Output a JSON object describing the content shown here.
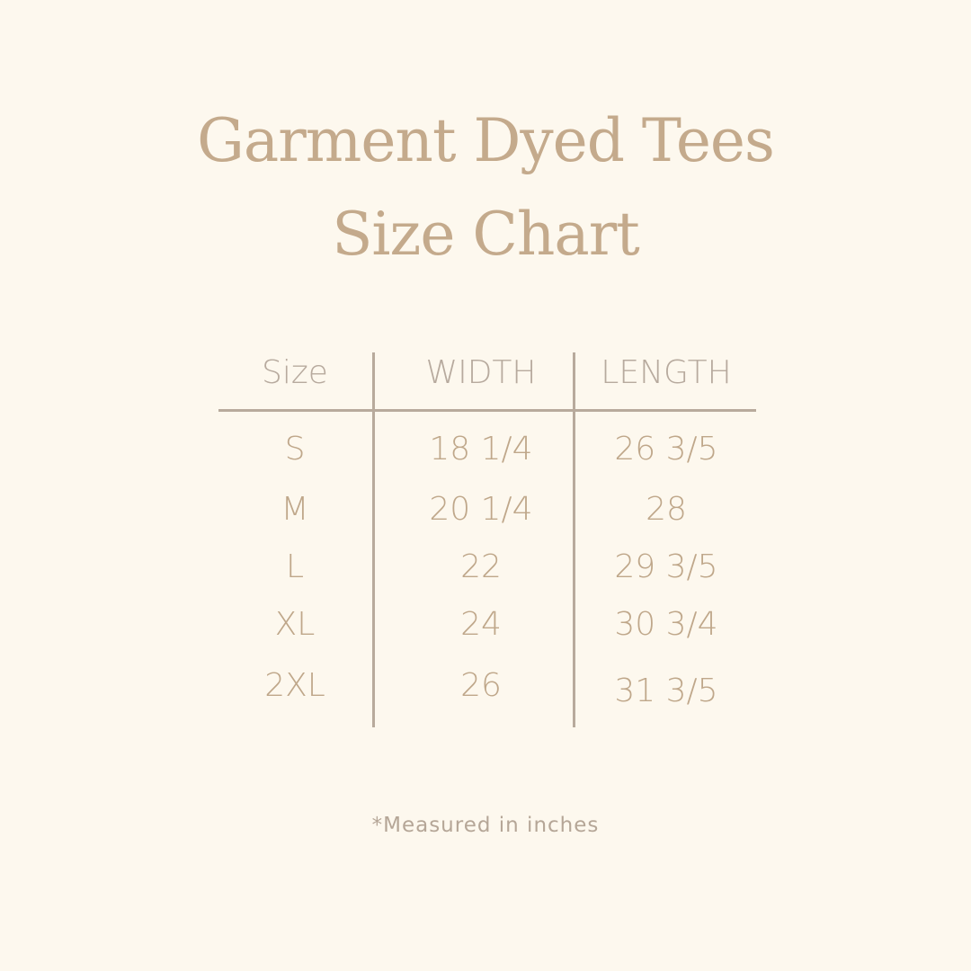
{
  "title_line1": "Garment Dyed Tees",
  "title_line2": "Size Chart",
  "table": {
    "headers": [
      "Size",
      "WIDTH",
      "LENGTH"
    ],
    "rows": [
      [
        "S",
        "18 1/4",
        "26 3/5"
      ],
      [
        "M",
        "20 1/4",
        "28"
      ],
      [
        "L",
        "22",
        "29 3/5"
      ],
      [
        "XL",
        "24",
        "30 3/4"
      ],
      [
        "2XL",
        "26",
        "31 3/5"
      ]
    ]
  },
  "footnote": "*Measured in inches",
  "colors": {
    "background": "#fdf8ee",
    "text": "#bfa78a",
    "lines": "#b8aa9c"
  }
}
